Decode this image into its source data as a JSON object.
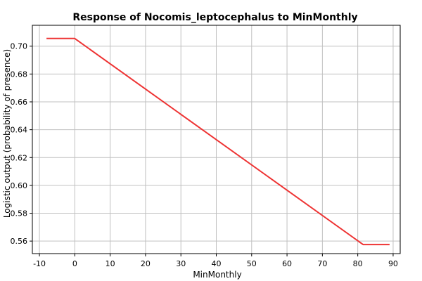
{
  "chart_data": {
    "type": "line",
    "title": "Response of Nocomis_leptocephalus to MinMonthly",
    "xlabel": "MinMonthly",
    "ylabel": "Logistic output (probability of presence)",
    "xlim": [
      -12,
      92
    ],
    "ylim": [
      0.551,
      0.715
    ],
    "x_ticks": [
      -10,
      0,
      10,
      20,
      30,
      40,
      50,
      60,
      70,
      80,
      90
    ],
    "y_ticks": [
      0.56,
      0.58,
      0.6,
      0.62,
      0.64,
      0.66,
      0.68,
      0.7
    ],
    "y_tick_decimals": 2,
    "grid": true,
    "colors": {
      "line": "#ee3333",
      "grid": "#c0c0c0",
      "frame": "#000000"
    },
    "series": [
      {
        "x": [
          -8,
          0,
          81.5,
          89
        ],
        "values": [
          0.7055,
          0.7055,
          0.5575,
          0.5575
        ]
      }
    ]
  }
}
